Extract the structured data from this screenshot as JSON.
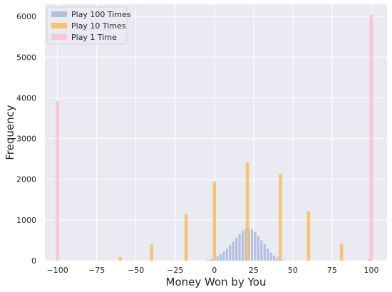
{
  "chart_data": {
    "type": "bar",
    "title": "",
    "xlabel": "Money Won by You",
    "ylabel": "Frequency",
    "xlim": [
      -108,
      110
    ],
    "ylim": [
      0,
      6300
    ],
    "xticks": [
      "−100",
      "−75",
      "−50",
      "−25",
      "0",
      "25",
      "50",
      "75",
      "100"
    ],
    "xtick_values": [
      -100,
      -75,
      -50,
      -25,
      0,
      25,
      50,
      75,
      100
    ],
    "yticks": [
      "0",
      "1000",
      "2000",
      "3000",
      "4000",
      "5000",
      "6000"
    ],
    "ytick_values": [
      0,
      1000,
      2000,
      3000,
      4000,
      5000,
      6000
    ],
    "grid": true,
    "legend_position": "top-left",
    "series": [
      {
        "name": "Play 100 Times",
        "color": "#8da0d4",
        "opacity": 0.6,
        "bar_width": 1.4,
        "points": [
          [
            -4,
            20
          ],
          [
            -2,
            40
          ],
          [
            0,
            70
          ],
          [
            2,
            110
          ],
          [
            4,
            160
          ],
          [
            6,
            220
          ],
          [
            8,
            290
          ],
          [
            10,
            380
          ],
          [
            12,
            470
          ],
          [
            14,
            560
          ],
          [
            16,
            650
          ],
          [
            18,
            730
          ],
          [
            20,
            780
          ],
          [
            22,
            800
          ],
          [
            24,
            760
          ],
          [
            26,
            700
          ],
          [
            28,
            600
          ],
          [
            30,
            500
          ],
          [
            32,
            400
          ],
          [
            34,
            300
          ],
          [
            36,
            200
          ],
          [
            38,
            130
          ],
          [
            40,
            80
          ],
          [
            42,
            40
          ],
          [
            44,
            20
          ]
        ]
      },
      {
        "name": "Play 10 Times",
        "color": "#f7c062",
        "opacity": 0.9,
        "bar_width": 2.0,
        "points": [
          [
            -60,
            90
          ],
          [
            -40,
            400
          ],
          [
            -18,
            1140
          ],
          [
            0,
            1940
          ],
          [
            21,
            2410
          ],
          [
            42,
            2130
          ],
          [
            60,
            1210
          ],
          [
            81,
            420
          ],
          [
            99,
            50
          ]
        ]
      },
      {
        "name": "Play 1 Time",
        "color": "#f8c3d4",
        "opacity": 0.9,
        "bar_width": 2.2,
        "points": [
          [
            -100,
            3920
          ],
          [
            100,
            6040
          ]
        ]
      }
    ]
  }
}
